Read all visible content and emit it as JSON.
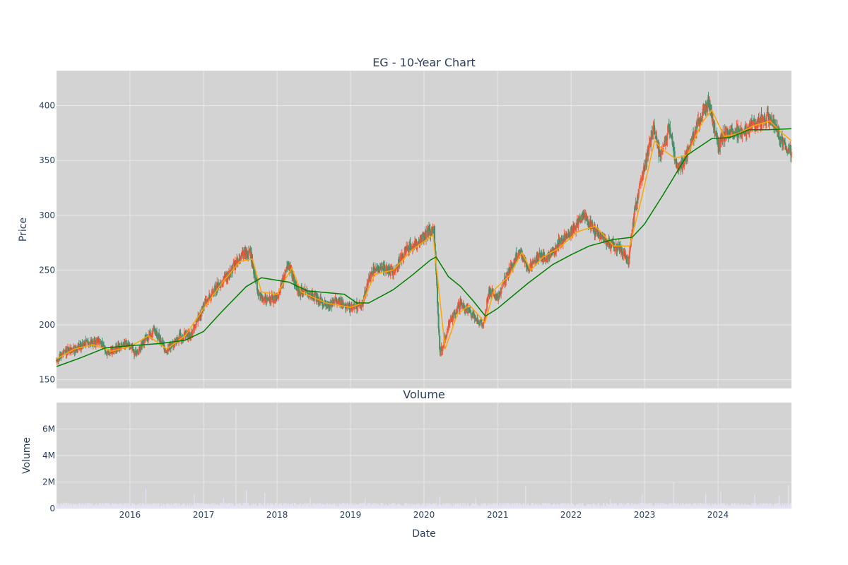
{
  "colors": {
    "background": "#ffffff",
    "plot_background": "#d3d3d3",
    "grid": "#e8e8e8",
    "up_candle": "#ef5a3c",
    "down_candle": "#3f8f6a",
    "ma_short": "#ffa500",
    "ma_long": "#008000",
    "volume": "#e3e3f2",
    "text": "#2a3f5f"
  },
  "chart_data": [
    {
      "type": "candlestick",
      "title": "EG - 10-Year Chart",
      "ylabel": "Price",
      "ylim": [
        142,
        432
      ],
      "yticks": [
        150,
        200,
        250,
        300,
        350,
        400
      ],
      "xlim": [
        "2015-01-01",
        "2024-12-31"
      ],
      "grid": true,
      "price_anchors": [
        [
          "2015-01-01",
          167
        ],
        [
          "2015-02-01",
          174
        ],
        [
          "2015-04-01",
          178
        ],
        [
          "2015-06-01",
          184
        ],
        [
          "2015-08-01",
          185
        ],
        [
          "2015-09-15",
          174
        ],
        [
          "2015-11-01",
          180
        ],
        [
          "2016-01-01",
          182
        ],
        [
          "2016-02-01",
          172
        ],
        [
          "2016-03-15",
          186
        ],
        [
          "2016-05-01",
          195
        ],
        [
          "2016-07-01",
          176
        ],
        [
          "2016-09-01",
          189
        ],
        [
          "2016-11-01",
          192
        ],
        [
          "2017-01-01",
          217
        ],
        [
          "2017-03-01",
          234
        ],
        [
          "2017-05-01",
          245
        ],
        [
          "2017-07-01",
          262
        ],
        [
          "2017-08-20",
          266
        ],
        [
          "2017-10-01",
          228
        ],
        [
          "2017-11-15",
          222
        ],
        [
          "2018-01-01",
          226
        ],
        [
          "2018-03-01",
          255
        ],
        [
          "2018-04-15",
          230
        ],
        [
          "2018-06-01",
          230
        ],
        [
          "2018-09-01",
          218
        ],
        [
          "2018-11-01",
          222
        ],
        [
          "2019-01-01",
          215
        ],
        [
          "2019-03-01",
          220
        ],
        [
          "2019-04-15",
          248
        ],
        [
          "2019-06-15",
          252
        ],
        [
          "2019-08-01",
          248
        ],
        [
          "2019-10-01",
          268
        ],
        [
          "2020-02-20",
          288
        ],
        [
          "2020-03-20",
          172
        ],
        [
          "2020-05-01",
          200
        ],
        [
          "2020-07-01",
          220
        ],
        [
          "2020-09-01",
          208
        ],
        [
          "2020-10-20",
          200
        ],
        [
          "2020-11-20",
          232
        ],
        [
          "2021-01-01",
          225
        ],
        [
          "2021-03-01",
          250
        ],
        [
          "2021-04-20",
          268
        ],
        [
          "2021-06-01",
          252
        ],
        [
          "2021-07-20",
          262
        ],
        [
          "2021-09-01",
          260
        ],
        [
          "2021-11-01",
          275
        ],
        [
          "2022-01-01",
          285
        ],
        [
          "2022-03-01",
          300
        ],
        [
          "2022-05-01",
          285
        ],
        [
          "2022-07-01",
          275
        ],
        [
          "2022-09-01",
          270
        ],
        [
          "2022-10-15",
          258
        ],
        [
          "2022-11-10",
          302
        ],
        [
          "2023-01-01",
          345
        ],
        [
          "2023-02-15",
          380
        ],
        [
          "2023-03-20",
          352
        ],
        [
          "2023-05-01",
          380
        ],
        [
          "2023-06-15",
          340
        ],
        [
          "2023-08-01",
          355
        ],
        [
          "2023-09-20",
          382
        ],
        [
          "2023-11-15",
          405
        ],
        [
          "2024-01-01",
          365
        ],
        [
          "2024-03-01",
          380
        ],
        [
          "2024-05-01",
          375
        ],
        [
          "2024-07-15",
          385
        ],
        [
          "2024-09-01",
          390
        ],
        [
          "2024-10-15",
          382
        ],
        [
          "2024-11-15",
          365
        ],
        [
          "2024-12-31",
          357
        ]
      ],
      "series": [
        {
          "type": "line",
          "values": [
            [
              "2015-01-01",
              169
            ],
            [
              "2015-04-01",
              178
            ],
            [
              "2015-07-01",
              182
            ],
            [
              "2015-10-01",
              176
            ],
            [
              "2016-01-01",
              180
            ],
            [
              "2016-04-01",
              190
            ],
            [
              "2016-07-01",
              178
            ],
            [
              "2016-10-01",
              190
            ],
            [
              "2017-01-01",
              215
            ],
            [
              "2017-04-01",
              238
            ],
            [
              "2017-07-01",
              258
            ],
            [
              "2017-09-01",
              260
            ],
            [
              "2017-10-15",
              230
            ],
            [
              "2018-01-01",
              228
            ],
            [
              "2018-03-15",
              252
            ],
            [
              "2018-05-01",
              230
            ],
            [
              "2018-09-01",
              220
            ],
            [
              "2019-01-01",
              216
            ],
            [
              "2019-03-01",
              220
            ],
            [
              "2019-05-01",
              246
            ],
            [
              "2019-08-01",
              250
            ],
            [
              "2019-11-01",
              268
            ],
            [
              "2020-02-15",
              282
            ],
            [
              "2020-04-15",
              178
            ],
            [
              "2020-06-15",
              210
            ],
            [
              "2020-08-15",
              218
            ],
            [
              "2020-10-30",
              202
            ],
            [
              "2020-12-15",
              232
            ],
            [
              "2021-03-01",
              245
            ],
            [
              "2021-05-01",
              266
            ],
            [
              "2021-06-15",
              250
            ],
            [
              "2021-08-15",
              262
            ],
            [
              "2021-11-01",
              270
            ],
            [
              "2022-02-01",
              285
            ],
            [
              "2022-05-01",
              290
            ],
            [
              "2022-08-01",
              272
            ],
            [
              "2022-10-20",
              272
            ],
            [
              "2022-12-20",
              318
            ],
            [
              "2023-02-20",
              368
            ],
            [
              "2023-04-01",
              360
            ],
            [
              "2023-06-01",
              352
            ],
            [
              "2023-08-01",
              355
            ],
            [
              "2023-10-15",
              385
            ],
            [
              "2023-12-01",
              396
            ],
            [
              "2024-02-01",
              372
            ],
            [
              "2024-04-01",
              374
            ],
            [
              "2024-07-01",
              382
            ],
            [
              "2024-09-15",
              386
            ],
            [
              "2024-11-15",
              375
            ],
            [
              "2024-12-31",
              368
            ]
          ]
        },
        {
          "type": "line",
          "values": [
            [
              "2015-01-01",
              162
            ],
            [
              "2015-05-01",
              170
            ],
            [
              "2015-09-01",
              179
            ],
            [
              "2016-01-01",
              181
            ],
            [
              "2016-06-01",
              183
            ],
            [
              "2016-10-01",
              186
            ],
            [
              "2017-01-01",
              194
            ],
            [
              "2017-04-01",
              212
            ],
            [
              "2017-08-01",
              235
            ],
            [
              "2017-10-15",
              243
            ],
            [
              "2018-03-01",
              239
            ],
            [
              "2018-06-01",
              231
            ],
            [
              "2018-12-01",
              228
            ],
            [
              "2019-02-01",
              220
            ],
            [
              "2019-04-01",
              220
            ],
            [
              "2019-08-01",
              232
            ],
            [
              "2019-11-01",
              245
            ],
            [
              "2020-02-01",
              259
            ],
            [
              "2020-03-01",
              262
            ],
            [
              "2020-05-01",
              244
            ],
            [
              "2020-07-01",
              235
            ],
            [
              "2020-09-01",
              222
            ],
            [
              "2020-11-01",
              208
            ],
            [
              "2021-01-01",
              215
            ],
            [
              "2021-06-01",
              238
            ],
            [
              "2021-10-01",
              255
            ],
            [
              "2022-01-01",
              264
            ],
            [
              "2022-04-01",
              272
            ],
            [
              "2022-08-01",
              278
            ],
            [
              "2022-11-01",
              280
            ],
            [
              "2023-01-01",
              292
            ],
            [
              "2023-04-01",
              318
            ],
            [
              "2023-08-01",
              355
            ],
            [
              "2023-12-01",
              370
            ],
            [
              "2024-03-01",
              371
            ],
            [
              "2024-06-01",
              378
            ],
            [
              "2024-09-01",
              378
            ],
            [
              "2024-12-31",
              379
            ]
          ]
        }
      ]
    },
    {
      "type": "bar",
      "title": "Volume",
      "xlabel": "Date",
      "ylabel": "Volume",
      "ylim": [
        0,
        8000000
      ],
      "yticks": [
        0,
        2000000,
        4000000,
        6000000
      ],
      "ytick_labels": [
        "0",
        "2M",
        "4M",
        "6M"
      ],
      "xlim": [
        "2015-01-01",
        "2024-12-31"
      ],
      "xticks": [
        "2016-01-01",
        "2017-01-01",
        "2018-01-01",
        "2019-01-01",
        "2020-01-01",
        "2021-01-01",
        "2022-01-01",
        "2023-01-01",
        "2024-01-01"
      ],
      "xtick_labels": [
        "2016",
        "2017",
        "2018",
        "2019",
        "2020",
        "2021",
        "2022",
        "2023",
        "2024"
      ],
      "grid": true,
      "baseline_volume": 300000,
      "spikes": [
        [
          "2016-03-20",
          1500000
        ],
        [
          "2016-11-15",
          1100000
        ],
        [
          "2017-04-10",
          800000
        ],
        [
          "2017-06-10",
          7500000
        ],
        [
          "2017-08-01",
          1400000
        ],
        [
          "2017-11-01",
          1200000
        ],
        [
          "2018-06-15",
          800000
        ],
        [
          "2019-03-15",
          800000
        ],
        [
          "2020-03-20",
          900000
        ],
        [
          "2020-09-15",
          800000
        ],
        [
          "2021-05-20",
          1700000
        ],
        [
          "2022-07-15",
          700000
        ],
        [
          "2022-12-20",
          1100000
        ],
        [
          "2023-05-25",
          2000000
        ],
        [
          "2023-11-01",
          1100000
        ],
        [
          "2024-01-15",
          1300000
        ],
        [
          "2024-07-01",
          1100000
        ],
        [
          "2024-11-01",
          1000000
        ],
        [
          "2024-12-15",
          1800000
        ]
      ]
    }
  ]
}
